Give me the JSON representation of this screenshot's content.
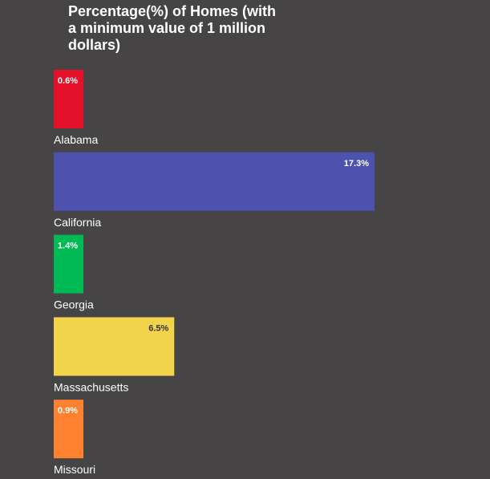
{
  "chart_data": {
    "type": "bar",
    "orientation": "horizontal",
    "title": "Percentage(%) of Homes (with a minimum value of 1 million dollars)",
    "categories": [
      "Alabama",
      "California",
      "Georgia",
      "Massachusetts",
      "Missouri"
    ],
    "values": [
      0.6,
      17.3,
      1.4,
      6.5,
      0.9
    ],
    "value_labels": [
      "0.6%",
      "17.3%",
      "1.4%",
      "6.5%",
      "0.9%"
    ],
    "bar_colors": [
      "#e5112b",
      "#4c52ad",
      "#00bb55",
      "#f2d44c",
      "#ff8130"
    ],
    "value_label_colors": [
      "#ffffff",
      "#ffffff",
      "#ffffff",
      "#333333",
      "#ffffff"
    ],
    "background": "#464444",
    "axes_visible": false,
    "grid": false,
    "legend": "none"
  }
}
